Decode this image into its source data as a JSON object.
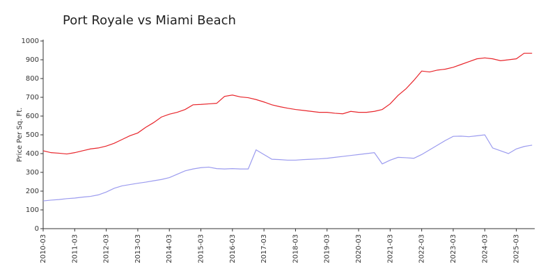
{
  "chart_data": {
    "type": "line",
    "title": "Port Royale vs Miami Beach",
    "y_label": "Price Per Sq. Ft.",
    "x": [
      "2010-03",
      "2010-06",
      "2010-09",
      "2010-12",
      "2011-03",
      "2011-06",
      "2011-09",
      "2011-12",
      "2012-03",
      "2012-06",
      "2012-09",
      "2012-12",
      "2013-03",
      "2013-06",
      "2013-09",
      "2013-12",
      "2014-03",
      "2014-06",
      "2014-09",
      "2014-12",
      "2015-03",
      "2015-06",
      "2015-09",
      "2015-12",
      "2016-03",
      "2016-06",
      "2016-09",
      "2016-12",
      "2017-03",
      "2017-06",
      "2017-09",
      "2017-12",
      "2018-03",
      "2018-06",
      "2018-09",
      "2018-12",
      "2019-03",
      "2019-06",
      "2019-09",
      "2019-12",
      "2020-03",
      "2020-06",
      "2020-09",
      "2020-12",
      "2021-03",
      "2021-06",
      "2021-09",
      "2021-12",
      "2022-03",
      "2022-06",
      "2022-09",
      "2022-12",
      "2023-03",
      "2023-06",
      "2023-09",
      "2023-12",
      "2024-03",
      "2024-06",
      "2024-09",
      "2024-12",
      "2025-03",
      "2025-06",
      "2025-09"
    ],
    "series": [
      {
        "color": "#e8242a",
        "values": [
          415,
          405,
          402,
          398,
          405,
          415,
          425,
          430,
          440,
          455,
          475,
          495,
          510,
          540,
          565,
          595,
          610,
          620,
          635,
          660,
          662,
          665,
          668,
          705,
          712,
          702,
          698,
          688,
          675,
          660,
          650,
          642,
          635,
          630,
          625,
          620,
          620,
          615,
          612,
          625,
          620,
          620,
          625,
          635,
          665,
          710,
          745,
          790,
          840,
          835,
          845,
          850,
          860,
          875,
          890,
          905,
          910,
          905,
          895,
          900,
          905,
          935,
          935
        ]
      },
      {
        "color": "#9b9bef",
        "values": [
          148,
          152,
          155,
          160,
          163,
          168,
          172,
          180,
          195,
          215,
          228,
          235,
          242,
          248,
          255,
          262,
          272,
          290,
          308,
          318,
          325,
          328,
          320,
          318,
          320,
          318,
          318,
          420,
          395,
          370,
          368,
          365,
          365,
          368,
          370,
          372,
          375,
          380,
          385,
          390,
          395,
          400,
          405,
          345,
          365,
          380,
          378,
          375,
          395,
          420,
          445,
          470,
          492,
          493,
          490,
          495,
          500,
          430,
          415,
          400,
          425,
          438,
          445
        ]
      }
    ],
    "xlim": [
      "2010-03",
      "2025-10"
    ],
    "xticks": [
      "2010-03",
      "2011-03",
      "2012-03",
      "2013-03",
      "2014-03",
      "2015-03",
      "2016-03",
      "2017-03",
      "2018-03",
      "2019-03",
      "2020-03",
      "2021-03",
      "2022-03",
      "2023-03",
      "2024-03",
      "2025-03"
    ],
    "ylim": [
      0,
      1000
    ],
    "yticks": [
      0,
      100,
      200,
      300,
      400,
      500,
      600,
      700,
      800,
      900,
      1000
    ]
  }
}
